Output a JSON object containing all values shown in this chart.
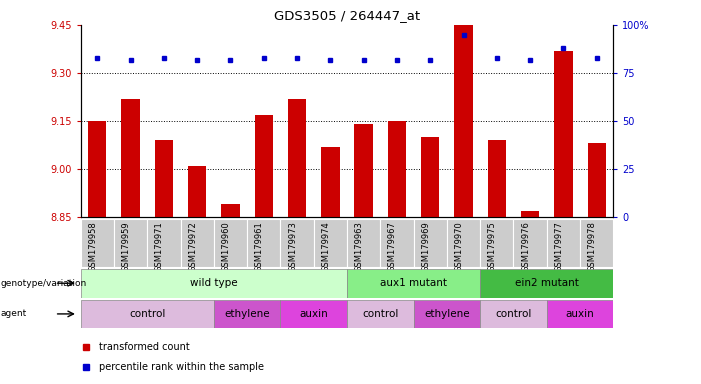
{
  "title": "GDS3505 / 264447_at",
  "samples": [
    "GSM179958",
    "GSM179959",
    "GSM179971",
    "GSM179972",
    "GSM179960",
    "GSM179961",
    "GSM179973",
    "GSM179974",
    "GSM179963",
    "GSM179967",
    "GSM179969",
    "GSM179970",
    "GSM179975",
    "GSM179976",
    "GSM179977",
    "GSM179978"
  ],
  "bar_values": [
    9.15,
    9.22,
    9.09,
    9.01,
    8.89,
    9.17,
    9.22,
    9.07,
    9.14,
    9.15,
    9.1,
    9.45,
    9.09,
    8.87,
    9.37,
    9.08
  ],
  "percentile_values": [
    83,
    82,
    83,
    82,
    82,
    83,
    83,
    82,
    82,
    82,
    82,
    95,
    83,
    82,
    88,
    83
  ],
  "ylim_left": [
    8.85,
    9.45
  ],
  "ylim_right": [
    0,
    100
  ],
  "yticks_left": [
    8.85,
    9.0,
    9.15,
    9.3,
    9.45
  ],
  "yticks_right": [
    0,
    25,
    50,
    75,
    100
  ],
  "grid_lines": [
    9.0,
    9.15,
    9.3
  ],
  "bar_color": "#cc0000",
  "dot_color": "#0000cc",
  "genotype_groups": [
    {
      "label": "wild type",
      "start": 0,
      "end": 8,
      "color": "#ccffcc"
    },
    {
      "label": "aux1 mutant",
      "start": 8,
      "end": 12,
      "color": "#88ee88"
    },
    {
      "label": "ein2 mutant",
      "start": 12,
      "end": 16,
      "color": "#44bb44"
    }
  ],
  "agent_groups": [
    {
      "label": "control",
      "start": 0,
      "end": 4,
      "color": "#ddbbdd"
    },
    {
      "label": "ethylene",
      "start": 4,
      "end": 6,
      "color": "#cc55cc"
    },
    {
      "label": "auxin",
      "start": 6,
      "end": 8,
      "color": "#dd44dd"
    },
    {
      "label": "control",
      "start": 8,
      "end": 10,
      "color": "#ddbbdd"
    },
    {
      "label": "ethylene",
      "start": 10,
      "end": 12,
      "color": "#cc55cc"
    },
    {
      "label": "control",
      "start": 12,
      "end": 14,
      "color": "#ddbbdd"
    },
    {
      "label": "auxin",
      "start": 14,
      "end": 16,
      "color": "#dd44dd"
    }
  ],
  "legend_red_label": "transformed count",
  "legend_blue_label": "percentile rank within the sample",
  "bar_color_legend": "#cc0000",
  "dot_color_legend": "#0000cc",
  "bar_bottom": 8.85,
  "sample_bg_color": "#cccccc",
  "bg_color": "#ffffff"
}
